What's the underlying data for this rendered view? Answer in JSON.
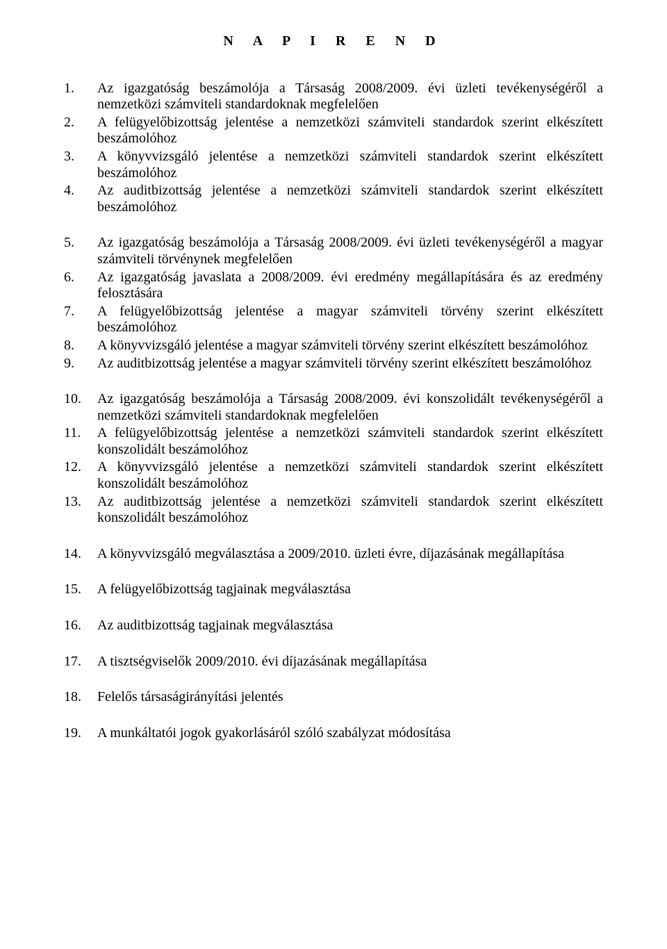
{
  "title": "N A P I R E N D",
  "font_family": "Times New Roman",
  "font_size_pt": 15,
  "text_color": "#000000",
  "background_color": "#ffffff",
  "groups": [
    {
      "items": [
        {
          "num": "1.",
          "text": "Az igazgatóság beszámolója a Társaság 2008/2009. évi üzleti tevékenységéről a nemzetközi számviteli standardoknak megfelelően"
        },
        {
          "num": "2.",
          "text": "A felügyelőbizottság jelentése a nemzetközi számviteli standardok szerint elkészített beszámolóhoz"
        },
        {
          "num": "3.",
          "text": "A könyvvizsgáló jelentése a nemzetközi számviteli standardok szerint elkészített beszámolóhoz"
        },
        {
          "num": "4.",
          "text": "Az auditbizottság jelentése a nemzetközi számviteli standardok szerint elkészített beszámolóhoz"
        }
      ]
    },
    {
      "items": [
        {
          "num": "5.",
          "text": "Az igazgatóság beszámolója a Társaság 2008/2009. évi üzleti tevékenységéről a magyar számviteli törvénynek megfelelően"
        },
        {
          "num": "6.",
          "text": "Az igazgatóság javaslata a 2008/2009. évi eredmény megállapítására és az eredmény felosztására"
        },
        {
          "num": "7.",
          "text": "A felügyelőbizottság jelentése a magyar számviteli törvény szerint elkészített beszámolóhoz"
        },
        {
          "num": "8.",
          "text": "A könyvvizsgáló jelentése a magyar számviteli törvény szerint elkészített beszámolóhoz"
        },
        {
          "num": "9.",
          "text": "Az auditbizottság jelentése a magyar számviteli törvény szerint elkészített beszámolóhoz"
        }
      ]
    },
    {
      "items": [
        {
          "num": "10.",
          "text": "Az igazgatóság beszámolója a Társaság 2008/2009. évi konszolidált tevékenységéről a nemzetközi számviteli standardoknak megfelelően"
        },
        {
          "num": "11.",
          "text": "A felügyelőbizottság jelentése a nemzetközi számviteli standardok szerint elkészített konszolidált beszámolóhoz"
        },
        {
          "num": "12.",
          "text": "A könyvvizsgáló jelentése a nemzetközi számviteli standardok szerint elkészített konszolidált beszámolóhoz"
        },
        {
          "num": "13.",
          "text": "Az auditbizottság jelentése a nemzetközi számviteli standardok szerint elkészített konszolidált beszámolóhoz"
        }
      ]
    },
    {
      "items": [
        {
          "num": "14.",
          "text": "A könyvvizsgáló megválasztása a 2009/2010. üzleti évre, díjazásának megállapítása"
        }
      ]
    },
    {
      "items": [
        {
          "num": "15.",
          "text": "A felügyelőbizottság tagjainak megválasztása"
        }
      ]
    },
    {
      "items": [
        {
          "num": "16.",
          "text": "Az auditbizottság tagjainak megválasztása"
        }
      ]
    },
    {
      "items": [
        {
          "num": "17.",
          "text": "A tisztségviselők 2009/2010. évi díjazásának megállapítása"
        }
      ]
    },
    {
      "items": [
        {
          "num": "18.",
          "text": "Felelős társaságirányítási jelentés"
        }
      ]
    },
    {
      "items": [
        {
          "num": "19.",
          "text": "A munkáltatói jogok gyakorlásáról szóló szabályzat módosítása"
        }
      ]
    }
  ]
}
